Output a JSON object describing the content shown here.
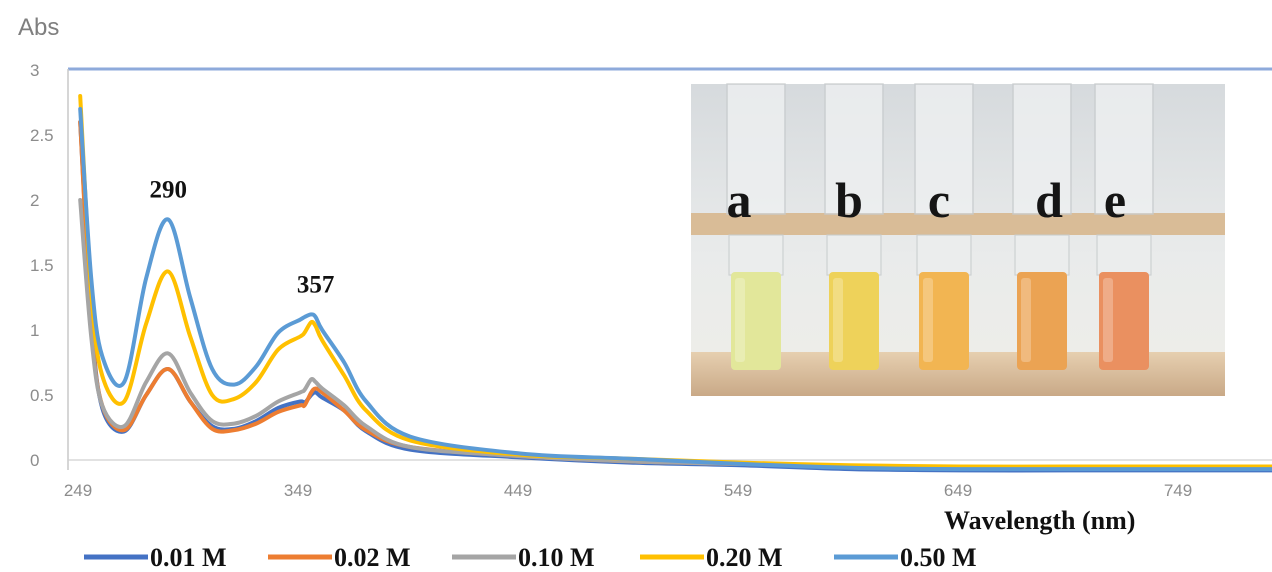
{
  "chart_data": {
    "type": "line",
    "ylabel": "Abs",
    "xlabel": "Wavelength (nm)",
    "xlim": [
      249,
      800
    ],
    "ylim": [
      0,
      3
    ],
    "xticks": [
      "249",
      "349",
      "449",
      "549",
      "649",
      "749"
    ],
    "yticks": [
      "0",
      "0.5",
      "1",
      "1.5",
      "2",
      "2.5",
      "3"
    ],
    "x": [
      250,
      255,
      260,
      270,
      280,
      290,
      300,
      310,
      320,
      330,
      340,
      350,
      352,
      355,
      357,
      360,
      370,
      380,
      400,
      450,
      500,
      550,
      600,
      650,
      700,
      750,
      800
    ],
    "series": [
      {
        "name": "0.01 M",
        "color": "#4472c4",
        "values": [
          2.6,
          1.1,
          0.4,
          0.22,
          0.5,
          0.7,
          0.45,
          0.26,
          0.24,
          0.3,
          0.4,
          0.45,
          0.44,
          0.5,
          0.52,
          0.48,
          0.38,
          0.22,
          0.08,
          0.02,
          -0.02,
          -0.04,
          -0.07,
          -0.08,
          -0.08,
          -0.08,
          -0.08
        ]
      },
      {
        "name": "0.02 M",
        "color": "#ed7d31",
        "values": [
          2.6,
          1.05,
          0.42,
          0.23,
          0.5,
          0.7,
          0.45,
          0.24,
          0.23,
          0.28,
          0.37,
          0.42,
          0.42,
          0.52,
          0.55,
          0.52,
          0.38,
          0.23,
          0.1,
          0.03,
          -0.01,
          -0.03,
          -0.05,
          -0.06,
          -0.06,
          -0.06,
          -0.06
        ]
      },
      {
        "name": "0.10 M",
        "color": "#a5a5a5",
        "values": [
          2.0,
          0.95,
          0.42,
          0.26,
          0.6,
          0.82,
          0.52,
          0.3,
          0.28,
          0.34,
          0.45,
          0.52,
          0.54,
          0.62,
          0.6,
          0.55,
          0.42,
          0.26,
          0.1,
          0.03,
          -0.01,
          -0.03,
          -0.05,
          -0.06,
          -0.06,
          -0.06,
          -0.06
        ]
      },
      {
        "name": "0.20 M",
        "color": "#ffc000",
        "values": [
          2.8,
          1.3,
          0.65,
          0.45,
          1.05,
          1.45,
          0.95,
          0.5,
          0.47,
          0.6,
          0.85,
          0.95,
          0.98,
          1.06,
          1.03,
          0.92,
          0.65,
          0.38,
          0.15,
          0.04,
          0.01,
          -0.02,
          -0.04,
          -0.05,
          -0.05,
          -0.05,
          -0.05
        ]
      },
      {
        "name": "0.50 M",
        "color": "#5b9bd5",
        "values": [
          2.7,
          1.4,
          0.8,
          0.6,
          1.4,
          1.85,
          1.25,
          0.7,
          0.58,
          0.72,
          0.98,
          1.08,
          1.1,
          1.12,
          1.1,
          1.0,
          0.75,
          0.45,
          0.18,
          0.05,
          0.01,
          -0.03,
          -0.06,
          -0.07,
          -0.07,
          -0.07,
          -0.07
        ]
      }
    ],
    "annotations": [
      {
        "text": "290",
        "x": 290,
        "y": 1.85
      },
      {
        "text": "357",
        "x": 357,
        "y": 1.12
      }
    ],
    "inset_photo_labels": [
      "a",
      "b",
      "c",
      "d",
      "e"
    ],
    "inset_vial_colors": [
      "#e2e79a",
      "#eed25a",
      "#f2b552",
      "#eba353",
      "#ea9060"
    ],
    "legend_position": "bottom",
    "grid": false
  }
}
